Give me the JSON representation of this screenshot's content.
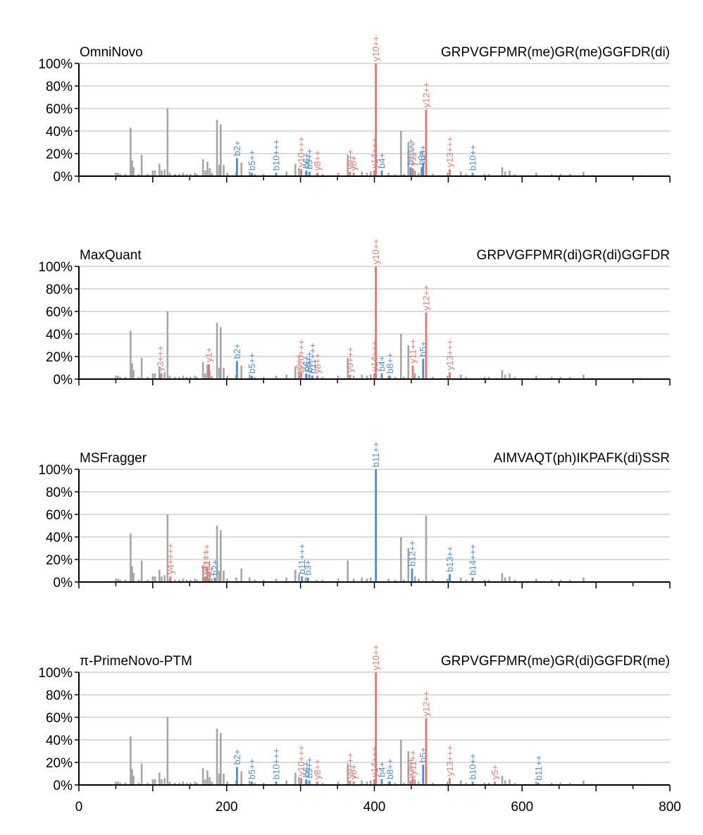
{
  "chart_data": {
    "type": "bar",
    "x_ticks": [
      "0",
      "200",
      "400",
      "600",
      "800"
    ],
    "y_ticks": [
      "0%",
      "20%",
      "40%",
      "60%",
      "80%",
      "100%"
    ],
    "xlim": [
      0,
      800
    ],
    "ylim": [
      0,
      100
    ],
    "grid": "horizontal",
    "colors": {
      "unmatched": "#a6a6a6",
      "y_ion": "#e8766d",
      "b_ion": "#4a8fd4",
      "grid": "#cfcfcf",
      "axis": "#000000"
    },
    "background_peaks": [
      [
        50,
        3
      ],
      [
        53,
        3
      ],
      [
        56,
        2
      ],
      [
        63,
        2
      ],
      [
        70,
        43
      ],
      [
        72,
        14
      ],
      [
        74,
        8
      ],
      [
        81,
        2
      ],
      [
        85,
        19
      ],
      [
        93,
        2
      ],
      [
        100,
        5
      ],
      [
        103,
        5
      ],
      [
        109,
        11
      ],
      [
        112,
        5
      ],
      [
        116,
        6
      ],
      [
        120,
        60
      ],
      [
        123,
        3
      ],
      [
        130,
        2
      ],
      [
        136,
        2
      ],
      [
        141,
        3
      ],
      [
        146,
        2
      ],
      [
        151,
        2
      ],
      [
        157,
        3
      ],
      [
        160,
        2
      ],
      [
        168,
        15
      ],
      [
        171,
        5
      ],
      [
        174,
        13
      ],
      [
        177,
        7
      ],
      [
        180,
        3
      ],
      [
        187,
        50
      ],
      [
        190,
        10
      ],
      [
        192,
        46
      ],
      [
        196,
        10
      ],
      [
        201,
        3
      ],
      [
        213,
        4
      ],
      [
        220,
        12
      ],
      [
        231,
        4
      ],
      [
        238,
        2
      ],
      [
        250,
        2
      ],
      [
        267,
        3
      ],
      [
        281,
        4
      ],
      [
        293,
        11
      ],
      [
        298,
        7
      ],
      [
        307,
        4
      ],
      [
        322,
        2
      ],
      [
        330,
        2
      ],
      [
        351,
        3
      ],
      [
        364,
        19
      ],
      [
        372,
        3
      ],
      [
        383,
        4
      ],
      [
        390,
        3
      ],
      [
        395,
        4
      ],
      [
        419,
        3
      ],
      [
        428,
        2
      ],
      [
        436,
        40
      ],
      [
        440,
        2
      ],
      [
        446,
        30
      ],
      [
        455,
        5
      ],
      [
        460,
        3
      ],
      [
        470,
        59
      ],
      [
        479,
        2
      ],
      [
        499,
        3
      ],
      [
        517,
        4
      ],
      [
        524,
        2
      ],
      [
        549,
        2
      ],
      [
        555,
        2
      ],
      [
        573,
        8
      ],
      [
        577,
        4
      ],
      [
        583,
        5
      ],
      [
        590,
        2
      ],
      [
        619,
        3
      ],
      [
        640,
        2
      ],
      [
        652,
        2
      ],
      [
        665,
        2
      ],
      [
        683,
        4
      ],
      [
        695,
        1
      ],
      [
        760,
        1
      ]
    ],
    "panels": [
      {
        "name": "OmniNovo",
        "sequence": "GRPVGFPMR(me)GR(me)GGFDR(di)",
        "peaks": [
          {
            "label": "b2+",
            "mz": 214,
            "intensity": 16,
            "ion": "b"
          },
          {
            "label": "b5++",
            "mz": 234,
            "intensity": 3,
            "ion": "b"
          },
          {
            "label": "b10+++",
            "mz": 267,
            "intensity": 3,
            "ion": "b"
          },
          {
            "label": "y10+++",
            "mz": 301,
            "intensity": 6,
            "ion": "y"
          },
          {
            "label": "b6+",
            "mz": 308,
            "intensity": 5,
            "ion": "b"
          },
          {
            "label": "b9++",
            "mz": 312,
            "intensity": 4,
            "ion": "b"
          },
          {
            "label": "y8++",
            "mz": 323,
            "intensity": 3,
            "ion": "y"
          },
          {
            "label": "y9++",
            "mz": 367,
            "intensity": 4,
            "ion": "y"
          },
          {
            "label": "y6+",
            "mz": 372,
            "intensity": 3,
            "ion": "y"
          },
          {
            "label": "y14+++",
            "mz": 400,
            "intensity": 5,
            "ion": "y"
          },
          {
            "label": "y10++",
            "mz": 402,
            "intensity": 100,
            "ion": "y"
          },
          {
            "label": "b4+",
            "mz": 410,
            "intensity": 5,
            "ion": "b"
          },
          {
            "label": "b13++",
            "mz": 449,
            "intensity": 8,
            "ion": "b"
          },
          {
            "label": "y11++",
            "mz": 452,
            "intensity": 7,
            "ion": "y"
          },
          {
            "label": "b3+",
            "mz": 464,
            "intensity": 8,
            "ion": "b"
          },
          {
            "label": "b5+",
            "mz": 466,
            "intensity": 12,
            "ion": "b"
          },
          {
            "label": "y12++",
            "mz": 470,
            "intensity": 59,
            "ion": "y"
          },
          {
            "label": "y13+++",
            "mz": 502,
            "intensity": 6,
            "ion": "y"
          },
          {
            "label": "b10++",
            "mz": 533,
            "intensity": 3,
            "ion": "b"
          }
        ]
      },
      {
        "name": "MaxQuant",
        "sequence": "GRPVGFPMR(di)GR(di)GGFDR",
        "peaks": [
          {
            "label": "y3+++",
            "mz": 110,
            "intensity": 5,
            "ion": "y"
          },
          {
            "label": "y1+",
            "mz": 176,
            "intensity": 13,
            "ion": "y"
          },
          {
            "label": "b2+",
            "mz": 214,
            "intensity": 16,
            "ion": "b"
          },
          {
            "label": "b5++",
            "mz": 234,
            "intensity": 3,
            "ion": "b"
          },
          {
            "label": "y6++",
            "mz": 298,
            "intensity": 3,
            "ion": "y"
          },
          {
            "label": "y10+++",
            "mz": 301,
            "intensity": 6,
            "ion": "y"
          },
          {
            "label": "b6+",
            "mz": 308,
            "intensity": 5,
            "ion": "b"
          },
          {
            "label": "b9++",
            "mz": 312,
            "intensity": 4,
            "ion": "b"
          },
          {
            "label": "b11+++",
            "mz": 316,
            "intensity": 3,
            "ion": "b"
          },
          {
            "label": "y8++",
            "mz": 323,
            "intensity": 3,
            "ion": "y"
          },
          {
            "label": "y9+++",
            "mz": 367,
            "intensity": 4,
            "ion": "y"
          },
          {
            "label": "y14+++",
            "mz": 400,
            "intensity": 5,
            "ion": "y"
          },
          {
            "label": "y10++",
            "mz": 402,
            "intensity": 100,
            "ion": "y"
          },
          {
            "label": "b4+",
            "mz": 410,
            "intensity": 5,
            "ion": "b"
          },
          {
            "label": "b8++",
            "mz": 421,
            "intensity": 3,
            "ion": "b"
          },
          {
            "label": "y11++",
            "mz": 452,
            "intensity": 12,
            "ion": "y"
          },
          {
            "label": "b5+",
            "mz": 466,
            "intensity": 18,
            "ion": "b"
          },
          {
            "label": "y12++",
            "mz": 470,
            "intensity": 59,
            "ion": "y"
          },
          {
            "label": "y13+++",
            "mz": 502,
            "intensity": 6,
            "ion": "y"
          }
        ]
      },
      {
        "name": "MSFragger",
        "sequence": "AIMVAQT(ph)IKPAFK(di)SSR",
        "peaks": [
          {
            "label": "y4++++",
            "mz": 124,
            "intensity": 5,
            "ion": "y"
          },
          {
            "label": "y4+++",
            "mz": 170,
            "intensity": 4,
            "ion": "y"
          },
          {
            "label": "y11+++",
            "mz": 173,
            "intensity": 5,
            "ion": "y"
          },
          {
            "label": "y1+",
            "mz": 176,
            "intensity": 3,
            "ion": "y"
          },
          {
            "label": "b2+",
            "mz": 184,
            "intensity": 4,
            "ion": "b"
          },
          {
            "label": "b11+++",
            "mz": 302,
            "intensity": 5,
            "ion": "b"
          },
          {
            "label": "b3+",
            "mz": 310,
            "intensity": 4,
            "ion": "b"
          },
          {
            "label": "b11++",
            "mz": 402,
            "intensity": 100,
            "ion": "b"
          },
          {
            "label": "b12++",
            "mz": 451,
            "intensity": 12,
            "ion": "b"
          },
          {
            "label": "b13++",
            "mz": 502,
            "intensity": 7,
            "ion": "b"
          },
          {
            "label": "b14+++",
            "mz": 533,
            "intensity": 4,
            "ion": "b"
          }
        ]
      },
      {
        "name": "π-PrimeNovo-PTM",
        "sequence": "GRPVGFPMR(me)GR(di)GGFDR(me)",
        "peaks": [
          {
            "label": "b2+",
            "mz": 214,
            "intensity": 16,
            "ion": "b"
          },
          {
            "label": "b5++",
            "mz": 234,
            "intensity": 3,
            "ion": "b"
          },
          {
            "label": "b10+++",
            "mz": 267,
            "intensity": 3,
            "ion": "b"
          },
          {
            "label": "y10+++",
            "mz": 301,
            "intensity": 6,
            "ion": "y"
          },
          {
            "label": "b6+",
            "mz": 308,
            "intensity": 5,
            "ion": "b"
          },
          {
            "label": "b9++",
            "mz": 312,
            "intensity": 4,
            "ion": "b"
          },
          {
            "label": "y8++",
            "mz": 323,
            "intensity": 3,
            "ion": "y"
          },
          {
            "label": "y9+++",
            "mz": 367,
            "intensity": 4,
            "ion": "y"
          },
          {
            "label": "y6+",
            "mz": 372,
            "intensity": 3,
            "ion": "y"
          },
          {
            "label": "y14+++",
            "mz": 400,
            "intensity": 5,
            "ion": "y"
          },
          {
            "label": "y10++",
            "mz": 402,
            "intensity": 100,
            "ion": "y"
          },
          {
            "label": "b4+",
            "mz": 410,
            "intensity": 5,
            "ion": "b"
          },
          {
            "label": "b8++",
            "mz": 421,
            "intensity": 3,
            "ion": "b"
          },
          {
            "label": "y3++",
            "mz": 449,
            "intensity": 4,
            "ion": "y"
          },
          {
            "label": "y11++",
            "mz": 452,
            "intensity": 7,
            "ion": "y"
          },
          {
            "label": "b5+",
            "mz": 466,
            "intensity": 18,
            "ion": "b"
          },
          {
            "label": "y12++",
            "mz": 470,
            "intensity": 59,
            "ion": "y"
          },
          {
            "label": "y13+++",
            "mz": 502,
            "intensity": 6,
            "ion": "y"
          },
          {
            "label": "b10++",
            "mz": 533,
            "intensity": 3,
            "ion": "b"
          },
          {
            "label": "y5+",
            "mz": 563,
            "intensity": 3,
            "ion": "y"
          },
          {
            "label": "b11++",
            "mz": 622,
            "intensity": 2,
            "ion": "b"
          }
        ]
      }
    ]
  }
}
